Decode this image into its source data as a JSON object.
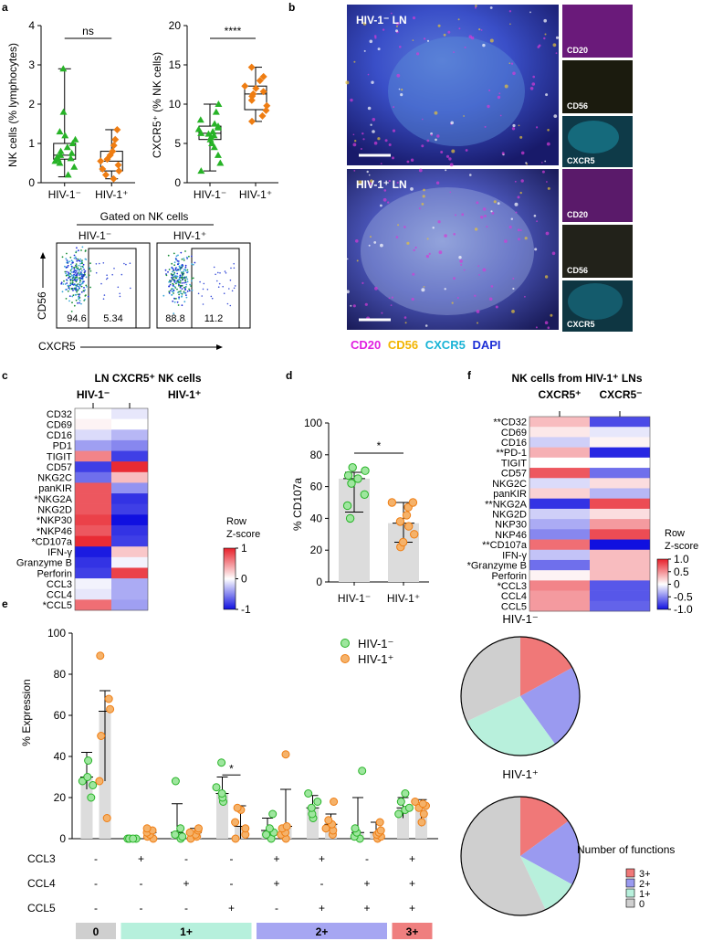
{
  "panel_labels": {
    "a": "a",
    "b": "b",
    "c": "c",
    "d": "d",
    "e": "e",
    "f": "f"
  },
  "a": {
    "nk_title": "NK cells (% lymphocytes)",
    "cx_title": "CXCR5⁺ (% NK cells)",
    "gated_title": "Gated on NK cells",
    "flow_axis_y": "CD56",
    "flow_axis_x": "CXCR5",
    "flow": [
      {
        "group": "HIV-1⁻",
        "left": "94.6",
        "right": "5.34"
      },
      {
        "group": "HIV-1⁺",
        "left": "88.8",
        "right": "11.2"
      }
    ]
  },
  "b": {
    "neg_label": "HIV-1⁻ LN",
    "pos_label": "HIV-1⁺ LN",
    "small_labels": [
      "CD20",
      "CD56",
      "CXCR5"
    ],
    "legend": [
      {
        "text": "CD20",
        "color": "#e020e0"
      },
      {
        "text": "CD56",
        "color": "#f2b400"
      },
      {
        "text": "CXCR5",
        "color": "#19b4d6"
      },
      {
        "text": "DAPI",
        "color": "#1d2fd6"
      }
    ]
  },
  "heat_c": {
    "title": "LN CXCR5⁺ NK cells",
    "cols": [
      "HIV-1⁻",
      "HIV-1⁺"
    ],
    "rows": [
      "CD32",
      "CD69",
      "CD16",
      "PD1",
      "TIGIT",
      "CD57",
      "NKG2C",
      "panKIR",
      "*NKG2A",
      "NKG2D",
      "*NKP30",
      "*NKP46",
      "*CD107a",
      "IFN-γ",
      "Granzyme B",
      "Perforin",
      "CCL3",
      "CCL4",
      "*CCL5"
    ],
    "values": [
      [
        0.0,
        -0.1
      ],
      [
        0.05,
        0.0
      ],
      [
        -0.15,
        -0.3
      ],
      [
        -0.4,
        -0.5
      ],
      [
        0.55,
        -0.8
      ],
      [
        -0.8,
        0.95
      ],
      [
        -0.6,
        0.3
      ],
      [
        0.75,
        -0.45
      ],
      [
        0.75,
        -0.85
      ],
      [
        0.75,
        -0.8
      ],
      [
        0.85,
        -1.0
      ],
      [
        0.75,
        -0.85
      ],
      [
        0.95,
        -0.8
      ],
      [
        -0.95,
        0.25
      ],
      [
        -0.85,
        -0.05
      ],
      [
        -0.8,
        0.85
      ],
      [
        -0.05,
        -0.35
      ],
      [
        -0.1,
        -0.35
      ],
      [
        0.65,
        -0.4
      ]
    ],
    "legend_title": "Row\nZ-score",
    "legend_ticks": [
      "1",
      "0",
      "-1"
    ]
  },
  "heat_f": {
    "title": "NK cells from HIV-1⁺ LNs",
    "cols": [
      "CXCR5⁺",
      "CXCR5⁻"
    ],
    "rows": [
      "**CD32",
      "CD69",
      "CD16",
      "**PD-1",
      "TIGIT",
      "CD57",
      "NKG2C",
      "panKIR",
      "**NKG2A",
      "NKG2D",
      "NKP30",
      "NKP46",
      "**CD107a",
      "IFN-γ",
      "*Granzyme B",
      "Perforin",
      "*CCL3",
      "CCL4",
      "CCL5"
    ],
    "values": [
      [
        0.3,
        -0.75
      ],
      [
        0.1,
        -0.1
      ],
      [
        -0.2,
        0.05
      ],
      [
        0.35,
        -0.9
      ],
      [
        0.0,
        0.0
      ],
      [
        0.75,
        -0.6
      ],
      [
        -0.15,
        0.15
      ],
      [
        0.2,
        -0.3
      ],
      [
        -0.85,
        0.8
      ],
      [
        -0.2,
        0.15
      ],
      [
        -0.35,
        0.45
      ],
      [
        -0.5,
        0.8
      ],
      [
        0.65,
        -1.0
      ],
      [
        -0.25,
        0.3
      ],
      [
        -0.6,
        0.3
      ],
      [
        0.05,
        0.3
      ],
      [
        0.55,
        -0.7
      ],
      [
        0.45,
        -0.7
      ],
      [
        0.45,
        -0.65
      ]
    ],
    "legend_title": "Row\nZ-score",
    "legend_ticks": [
      "1.0",
      "0.5",
      "0",
      "-0.5",
      "-1.0"
    ]
  },
  "pie_legend_title": "Number of functions",
  "chart_data": [
    {
      "id": "a-nk",
      "type": "box",
      "ylabel": "NK cells (% lymphocytes)",
      "ylim": [
        0,
        4
      ],
      "yticks": [
        "0",
        "1",
        "2",
        "3",
        "4"
      ],
      "categories": [
        "HIV-1⁻",
        "HIV-1⁺"
      ],
      "significance": "ns",
      "boxes": [
        {
          "min": 0.15,
          "q1": 0.6,
          "median": 0.7,
          "q3": 1.0,
          "max": 2.9,
          "color": "#27b327",
          "points": [
            0.2,
            0.4,
            0.5,
            0.55,
            0.6,
            0.62,
            0.65,
            0.7,
            0.75,
            0.8,
            0.9,
            1.0,
            1.1,
            1.2,
            1.3,
            1.8,
            2.9
          ]
        },
        {
          "min": 0.1,
          "q1": 0.3,
          "median": 0.55,
          "q3": 0.8,
          "max": 1.35,
          "color": "#ef7d12",
          "points": [
            0.1,
            0.2,
            0.3,
            0.35,
            0.45,
            0.55,
            0.6,
            0.7,
            0.8,
            0.95,
            1.1,
            1.35
          ]
        }
      ]
    },
    {
      "id": "a-cx",
      "type": "box",
      "ylabel": "CXCR5⁺ (% NK cells)",
      "ylim": [
        0,
        20
      ],
      "yticks": [
        "0",
        "5",
        "10",
        "15",
        "20"
      ],
      "categories": [
        "HIV-1⁻",
        "HIV-1⁺"
      ],
      "significance": "****",
      "boxes": [
        {
          "min": 1.5,
          "q1": 5.5,
          "median": 6.3,
          "q3": 7.2,
          "max": 10.0,
          "color": "#27b327",
          "points": [
            1.5,
            2.5,
            3.5,
            4.5,
            5.0,
            5.5,
            5.8,
            6.0,
            6.2,
            6.3,
            6.5,
            6.8,
            7.0,
            7.2,
            7.5,
            8.0,
            9.0,
            10.0
          ]
        },
        {
          "min": 7.8,
          "q1": 9.3,
          "median": 11.3,
          "q3": 12.3,
          "max": 14.7,
          "color": "#ef7d12",
          "points": [
            7.8,
            8.5,
            9.2,
            9.8,
            10.5,
            11.0,
            11.3,
            11.6,
            12.0,
            12.3,
            13.0,
            13.5,
            14.7
          ]
        }
      ]
    },
    {
      "id": "d",
      "type": "bar",
      "ylabel": "% CD107a",
      "ylim": [
        0,
        100
      ],
      "yticks": [
        "0",
        "20",
        "40",
        "60",
        "80",
        "100"
      ],
      "categories": [
        "HIV-1⁻",
        "HIV-1⁺"
      ],
      "values": [
        65,
        37
      ],
      "errors": [
        [
          44,
          69
        ],
        [
          25,
          50
        ]
      ],
      "colors": [
        "#27b327",
        "#ef7d12"
      ],
      "points": [
        [
          40,
          48,
          55,
          62,
          65,
          67,
          70,
          72
        ],
        [
          22,
          25,
          30,
          35,
          38,
          42,
          47,
          50,
          50
        ]
      ],
      "significance": "*"
    },
    {
      "id": "e",
      "type": "bar",
      "ylabel": "% Expression",
      "ylim": [
        0,
        100
      ],
      "yticks": [
        "0",
        "20",
        "40",
        "60",
        "80",
        "100"
      ],
      "legend": [
        "HIV-1⁻",
        "HIV-1⁺"
      ],
      "row_labels": [
        "CCL3",
        "CCL4",
        "CCL5"
      ],
      "combos": [
        [
          "-",
          "-",
          "-"
        ],
        [
          "+",
          "-",
          "-"
        ],
        [
          "-",
          "+",
          "-"
        ],
        [
          "-",
          "-",
          "+"
        ],
        [
          "+",
          "+",
          "-"
        ],
        [
          "+",
          "-",
          "+"
        ],
        [
          "-",
          "+",
          "+"
        ],
        [
          "+",
          "+",
          "+"
        ]
      ],
      "neg_values": [
        30,
        0,
        3,
        22,
        4,
        15,
        3,
        15
      ],
      "pos_values": [
        62,
        3,
        3,
        6,
        6,
        7,
        3,
        15
      ],
      "neg_err": [
        [
          24,
          42
        ],
        [
          0,
          0
        ],
        [
          0,
          17
        ],
        [
          17,
          30
        ],
        [
          0,
          10
        ],
        [
          10,
          21
        ],
        [
          0,
          20
        ],
        [
          10,
          20
        ]
      ],
      "pos_err": [
        [
          28,
          72
        ],
        [
          0,
          5
        ],
        [
          0,
          5
        ],
        [
          0,
          16
        ],
        [
          0,
          24
        ],
        [
          2,
          12
        ],
        [
          0,
          8
        ],
        [
          6,
          19
        ]
      ],
      "neg_points": [
        [
          20,
          26,
          28,
          30,
          38
        ],
        [
          0,
          0,
          0,
          0,
          0
        ],
        [
          0,
          1,
          2,
          5,
          28
        ],
        [
          18,
          20,
          22,
          25,
          37
        ],
        [
          0,
          2,
          3,
          5,
          12
        ],
        [
          10,
          12,
          15,
          18,
          22
        ],
        [
          0,
          1,
          3,
          5,
          33
        ],
        [
          12,
          14,
          15,
          18,
          22
        ]
      ],
      "pos_points": [
        [
          10,
          28,
          50,
          63,
          68,
          89
        ],
        [
          0,
          1,
          2,
          3,
          4,
          5
        ],
        [
          0,
          1,
          2,
          3,
          4,
          5
        ],
        [
          0,
          2,
          5,
          8,
          14,
          15
        ],
        [
          0,
          2,
          3,
          5,
          6,
          41
        ],
        [
          2,
          4,
          5,
          7,
          9,
          18
        ],
        [
          0,
          1,
          2,
          3,
          4,
          8
        ],
        [
          8,
          12,
          15,
          16,
          17,
          18
        ]
      ],
      "significance": [
        {
          "combo": 3,
          "text": "*"
        }
      ],
      "groups": [
        {
          "label": "0",
          "span": [
            0,
            0
          ],
          "color": "#cfcfcf"
        },
        {
          "label": "1+",
          "span": [
            1,
            3
          ],
          "color": "#b6f0dc"
        },
        {
          "label": "2+",
          "span": [
            4,
            6
          ],
          "color": "#a6a6f2"
        },
        {
          "label": "3+",
          "span": [
            7,
            7
          ],
          "color": "#ef7f7f"
        }
      ]
    },
    {
      "id": "pie-neg",
      "type": "pie",
      "title": "HIV-1⁻",
      "labels": [
        "3+",
        "2+",
        "1+",
        "0"
      ],
      "values": [
        17,
        23,
        28,
        32
      ],
      "colors": [
        "#f07878",
        "#9a9af0",
        "#b8f0dc",
        "#cfcfcf"
      ]
    },
    {
      "id": "pie-pos",
      "type": "pie",
      "title": "HIV-1⁺",
      "labels": [
        "3+",
        "2+",
        "1+",
        "0"
      ],
      "values": [
        15,
        18,
        10,
        57
      ],
      "colors": [
        "#f07878",
        "#9a9af0",
        "#b8f0dc",
        "#cfcfcf"
      ]
    }
  ]
}
